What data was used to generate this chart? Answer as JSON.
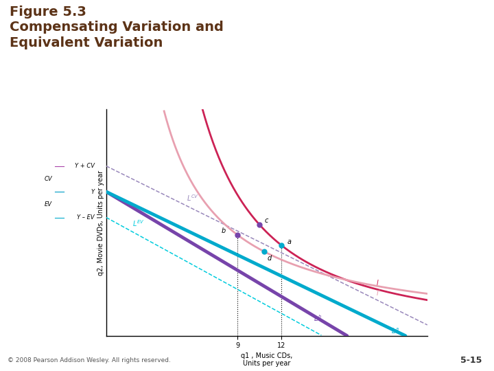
{
  "title_line1": "Figure 5.3",
  "title_line2": "Compensating Variation and",
  "title_line3": "Equivalent Variation",
  "copyright": "© 2008 Pearson Addison Wesley. All rights reserved.",
  "slide_num": "5-15",
  "bg_color": "#ffffff",
  "gold_line_color": "#b8960c",
  "title_color": "#5c3317",
  "xmin": 0,
  "xmax": 22,
  "ymin": 0,
  "ymax": 22,
  "x_label": "q1 , Music CDs,\nUnits per year",
  "y_label": "q2, Movie DVDs, Units per year",
  "x_ticks": [
    9,
    12
  ],
  "Y_val": 14.0,
  "YpCV_val": 16.5,
  "YmEV_val": 11.5,
  "La_xint": 20.5,
  "Lb_xint": 16.5,
  "LCV_xint": 23.5,
  "LEV_xint": 14.8,
  "point_a": [
    12.0,
    8.8
  ],
  "point_b": [
    9.0,
    9.8
  ],
  "point_c": [
    10.5,
    10.8
  ],
  "point_d": [
    10.8,
    8.2
  ],
  "curve_I_color": "#cc2255",
  "curve_Ip_color": "#e8a0b0",
  "La_color": "#00aacc",
  "Lb_color": "#7744aa",
  "LCV_color": "#9988bb",
  "LEV_color": "#00ccdd",
  "dot_a_color": "#00aacc",
  "dot_b_color": "#7744aa",
  "dot_c_color": "#7744aa",
  "dot_d_color": "#00aacc"
}
